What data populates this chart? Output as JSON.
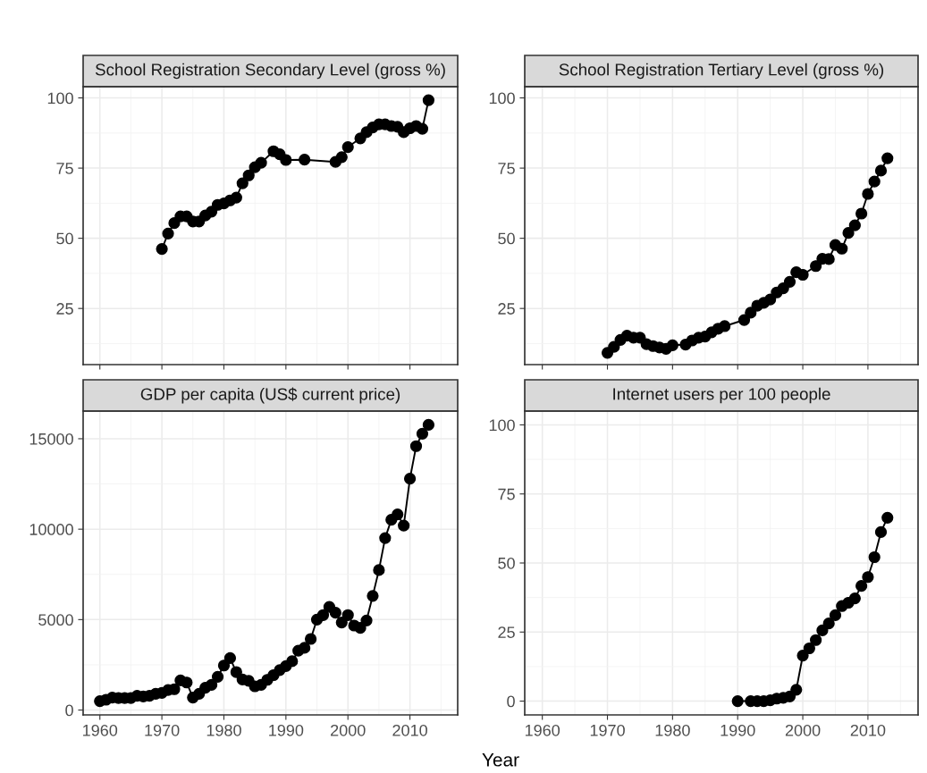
{
  "chart_data": [
    {
      "type": "line",
      "title": "School Registration Secondary Level (gross %)",
      "marker": "circle",
      "line_style": "solid",
      "grid": true,
      "tick_labels": "y",
      "xlim": [
        1957.3,
        2017.7
      ],
      "xticks": [
        1960,
        1970,
        1980,
        1990,
        2000,
        2010
      ],
      "ylim": [
        5,
        104
      ],
      "yticks": [
        25,
        50,
        75,
        100
      ],
      "series": [
        {
          "color": "#000000",
          "x": [
            1970,
            1971,
            1972,
            1973,
            1974,
            1975,
            1976,
            1977,
            1978,
            1979,
            1980,
            1981,
            1982,
            1983,
            1984,
            1985,
            1986,
            1988,
            1989,
            1990,
            1993,
            1998,
            1999,
            2000,
            2002,
            2003,
            2004,
            2005,
            2006,
            2007,
            2008,
            2009,
            2010,
            2011,
            2012,
            2013
          ],
          "values": [
            46.2,
            51.7,
            55.4,
            57.8,
            57.8,
            56,
            56,
            58.1,
            59.5,
            61.9,
            62.4,
            63.5,
            64.5,
            69.6,
            72.4,
            75.3,
            76.9,
            81,
            79.9,
            77.9,
            78,
            77.2,
            78.9,
            82.5,
            85.6,
            87.8,
            89.5,
            90.6,
            90.6,
            90,
            89.7,
            87.8,
            89.2,
            90,
            89,
            99.2
          ]
        }
      ]
    },
    {
      "type": "line",
      "title": "School Registration Tertiary Level (gross %)",
      "marker": "circle",
      "line_style": "solid",
      "grid": true,
      "tick_labels": "y",
      "xlim": [
        1957.3,
        2017.7
      ],
      "xticks": [
        1960,
        1970,
        1980,
        1990,
        2000,
        2010
      ],
      "ylim": [
        5,
        104
      ],
      "yticks": [
        25,
        50,
        75,
        100
      ],
      "series": [
        {
          "color": "#000000",
          "x": [
            1970,
            1971,
            1972,
            1973,
            1974,
            1975,
            1976,
            1977,
            1978,
            1979,
            1980,
            1982,
            1983,
            1984,
            1985,
            1986,
            1987,
            1988,
            1991,
            1992,
            1993,
            1994,
            1995,
            1996,
            1997,
            1998,
            1999,
            2000,
            2002,
            2003,
            2004,
            2005,
            2006,
            2007,
            2008,
            2009,
            2010,
            2011,
            2012,
            2013
          ],
          "values": [
            9.2,
            11.3,
            13.8,
            15.3,
            14.6,
            14.6,
            12.3,
            11.6,
            11.1,
            10.6,
            11.9,
            12.1,
            13.6,
            14.6,
            15,
            16.5,
            17.8,
            18.7,
            20.9,
            23.5,
            26,
            27,
            28.2,
            30.7,
            32.2,
            34.5,
            37.9,
            37,
            40.1,
            42.7,
            42.6,
            47.6,
            46.3,
            51.9,
            54.6,
            58.8,
            65.8,
            70.2,
            74.1,
            78.5
          ]
        }
      ]
    },
    {
      "type": "line",
      "title": "GDP per capita (US$ current price)",
      "xlabel": "Year",
      "marker": "circle",
      "line_style": "solid",
      "grid": true,
      "xlim": [
        1957.3,
        2017.7
      ],
      "xticks": [
        1960,
        1970,
        1980,
        1990,
        2000,
        2010
      ],
      "ylim": [
        -270,
        16530
      ],
      "yticks": [
        0,
        5000,
        10000,
        15000
      ],
      "series": [
        {
          "color": "#000000",
          "x": [
            1960,
            1961,
            1962,
            1963,
            1964,
            1965,
            1966,
            1967,
            1968,
            1969,
            1970,
            1971,
            1972,
            1973,
            1974,
            1975,
            1976,
            1977,
            1978,
            1979,
            1980,
            1981,
            1982,
            1983,
            1984,
            1985,
            1986,
            1987,
            1988,
            1989,
            1990,
            1991,
            1992,
            1993,
            1994,
            1995,
            1996,
            1997,
            1998,
            1999,
            2000,
            2001,
            2002,
            2003,
            2004,
            2005,
            2006,
            2007,
            2008,
            2009,
            2010,
            2011,
            2012,
            2013
          ],
          "values": [
            490,
            570,
            690,
            660,
            660,
            660,
            790,
            750,
            790,
            900,
            950,
            1110,
            1150,
            1640,
            1520,
            690,
            900,
            1230,
            1390,
            1840,
            2460,
            2870,
            2100,
            1690,
            1610,
            1310,
            1390,
            1670,
            1930,
            2210,
            2430,
            2700,
            3280,
            3440,
            3930,
            5000,
            5250,
            5700,
            5380,
            4840,
            5250,
            4670,
            4540,
            4950,
            6310,
            7740,
            9510,
            10520,
            10820,
            10200,
            12790,
            14590,
            15280,
            15770
          ]
        }
      ]
    },
    {
      "type": "line",
      "title": "Internet users per 100 people",
      "marker": "circle",
      "line_style": "solid",
      "grid": true,
      "xlim": [
        1957.3,
        2017.7
      ],
      "xticks": [
        1960,
        1970,
        1980,
        1990,
        2000,
        2010
      ],
      "ylim": [
        -5,
        105
      ],
      "yticks": [
        0,
        25,
        50,
        75,
        100
      ],
      "series": [
        {
          "color": "#000000",
          "x": [
            1990,
            1992,
            1993,
            1994,
            1995,
            1996,
            1997,
            1998,
            1999,
            2000,
            2001,
            2002,
            2003,
            2004,
            2005,
            2006,
            2007,
            2008,
            2009,
            2010,
            2011,
            2012,
            2013
          ],
          "values": [
            0,
            0,
            0,
            0,
            0.3,
            0.9,
            1.2,
            1.7,
            4.1,
            16.5,
            19.1,
            22.1,
            25.6,
            28.1,
            31.1,
            34.4,
            35.6,
            37.2,
            41.7,
            44.9,
            52.1,
            61.2,
            66.4
          ]
        }
      ]
    }
  ]
}
